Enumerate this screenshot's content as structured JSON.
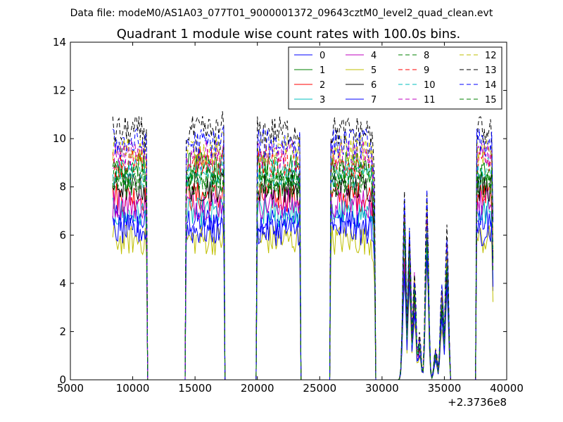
{
  "chart_data": {
    "type": "line",
    "suptitle": "Data file: modeM0/AS1A03_077T01_9000001372_09643cztM0_level2_quad_clean.evt",
    "title": "Quadrant 1 module wise count rates with 100.0s bins.",
    "xlabel": "",
    "ylabel": "",
    "x_offset_label": "+2.3736e8",
    "xlim": [
      5000,
      40000
    ],
    "ylim": [
      0,
      14
    ],
    "xticks": [
      "5000",
      "10000",
      "15000",
      "20000",
      "25000",
      "30000",
      "35000",
      "40000"
    ],
    "yticks": [
      "0",
      "2",
      "4",
      "6",
      "8",
      "10",
      "12",
      "14"
    ],
    "legend_position": "top-right",
    "segments": [
      {
        "start": 8400,
        "end": 11100,
        "end_level": 0.96
      },
      {
        "start": 14300,
        "end": 17300,
        "end_level": 1.05
      },
      {
        "start": 20000,
        "end": 23400,
        "end_level": 1.0
      },
      {
        "start": 25900,
        "end": 29400,
        "end_level": 0.78
      },
      {
        "start": 37600,
        "end": 38900,
        "end_level": 0.6
      }
    ],
    "gap_zero_ranges": [
      [
        11400,
        14200
      ],
      [
        17600,
        19900
      ],
      [
        23700,
        25800
      ],
      [
        29800,
        31300
      ],
      [
        35500,
        37500
      ]
    ],
    "peaks": [
      {
        "x": 31800,
        "y": 1.0
      },
      {
        "x": 32200,
        "y": 0.85
      },
      {
        "x": 32600,
        "y": 0.62
      },
      {
        "x": 33000,
        "y": 0.25
      },
      {
        "x": 33600,
        "y": 1.05
      },
      {
        "x": 34300,
        "y": 0.18
      },
      {
        "x": 34800,
        "y": 0.55
      },
      {
        "x": 35200,
        "y": 0.82
      }
    ],
    "series": [
      {
        "name": "0",
        "color": "#0000ff",
        "dash": "solid",
        "level": 6.6
      },
      {
        "name": "1",
        "color": "#008000",
        "dash": "solid",
        "level": 8.8
      },
      {
        "name": "2",
        "color": "#ff0000",
        "dash": "solid",
        "level": 7.6
      },
      {
        "name": "3",
        "color": "#00bfbf",
        "dash": "solid",
        "level": 6.9
      },
      {
        "name": "4",
        "color": "#bf00bf",
        "dash": "solid",
        "level": 7.3
      },
      {
        "name": "5",
        "color": "#bfbf00",
        "dash": "solid",
        "level": 5.8
      },
      {
        "name": "6",
        "color": "#000000",
        "dash": "solid",
        "level": 8.0
      },
      {
        "name": "7",
        "color": "#0000ff",
        "dash": "solid",
        "level": 6.2
      },
      {
        "name": "8",
        "color": "#008000",
        "dash": "dashed",
        "level": 8.2
      },
      {
        "name": "9",
        "color": "#ff0000",
        "dash": "dashed",
        "level": 9.0
      },
      {
        "name": "10",
        "color": "#00bfbf",
        "dash": "dashed",
        "level": 8.6
      },
      {
        "name": "11",
        "color": "#bf00bf",
        "dash": "dashed",
        "level": 9.3
      },
      {
        "name": "12",
        "color": "#bfbf00",
        "dash": "dashed",
        "level": 9.5
      },
      {
        "name": "13",
        "color": "#000000",
        "dash": "dashed",
        "level": 10.3
      },
      {
        "name": "14",
        "color": "#0000ff",
        "dash": "dashed",
        "level": 9.8
      },
      {
        "name": "15",
        "color": "#008000",
        "dash": "dashed",
        "level": 8.4
      }
    ]
  }
}
